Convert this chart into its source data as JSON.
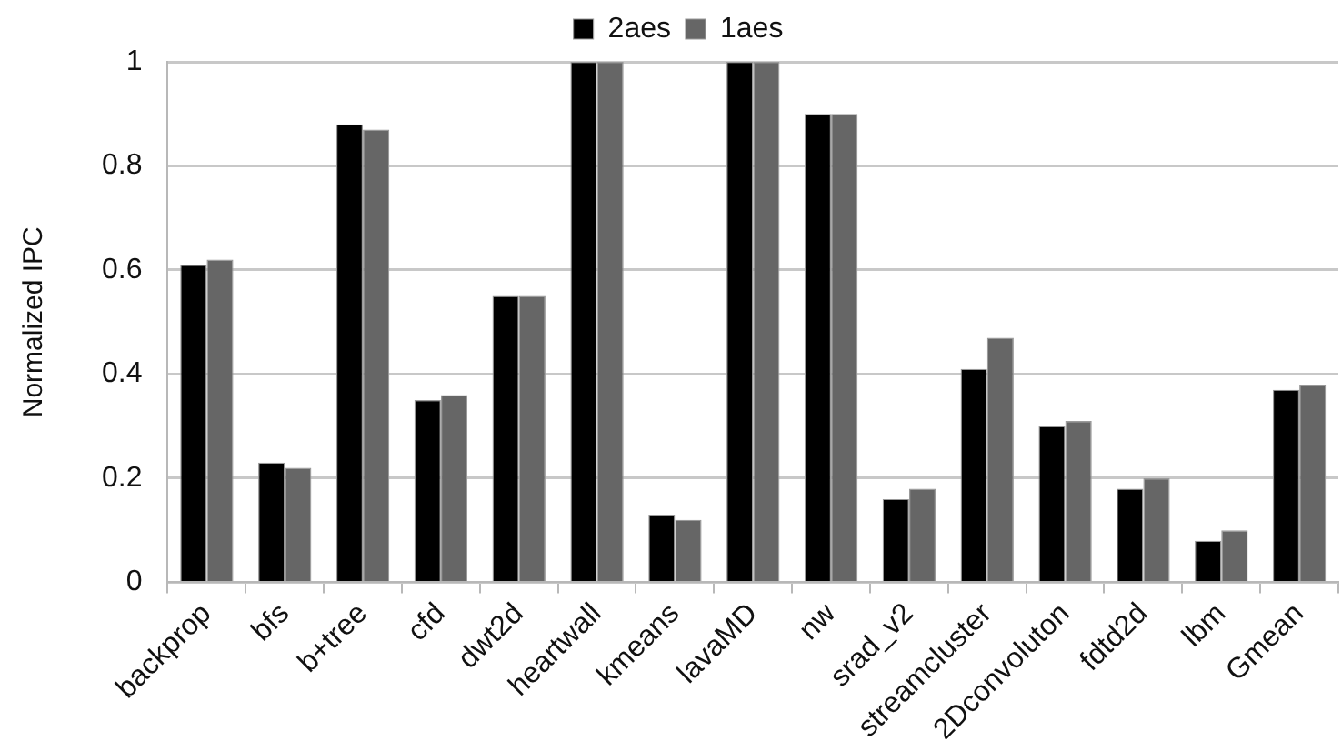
{
  "chart_data": {
    "type": "bar",
    "ylabel": "Normalized IPC",
    "categories": [
      "backprop",
      "bfs",
      "b+tree",
      "cfd",
      "dwt2d",
      "heartwall",
      "kmeans",
      "lavaMD",
      "nw",
      "srad_v2",
      "streamcluster",
      "2Dconvoluton",
      "fdtd2d",
      "lbm",
      "Gmean"
    ],
    "series": [
      {
        "name": "2aes",
        "color": "#000000",
        "values": [
          0.61,
          0.23,
          0.88,
          0.35,
          0.55,
          1,
          0.13,
          1,
          0.9,
          0.16,
          0.41,
          0.3,
          0.18,
          0.08,
          0.37
        ]
      },
      {
        "name": "1aes",
        "color": "#666666",
        "values": [
          0.62,
          0.22,
          0.87,
          0.36,
          0.55,
          1,
          0.12,
          1,
          0.9,
          0.18,
          0.47,
          0.31,
          0.2,
          0.1,
          0.38
        ]
      }
    ],
    "ylim": [
      0,
      1
    ],
    "yticks": [
      0,
      0.2,
      0.4,
      0.6,
      0.8,
      1
    ],
    "grid": "y",
    "legend": "top"
  }
}
